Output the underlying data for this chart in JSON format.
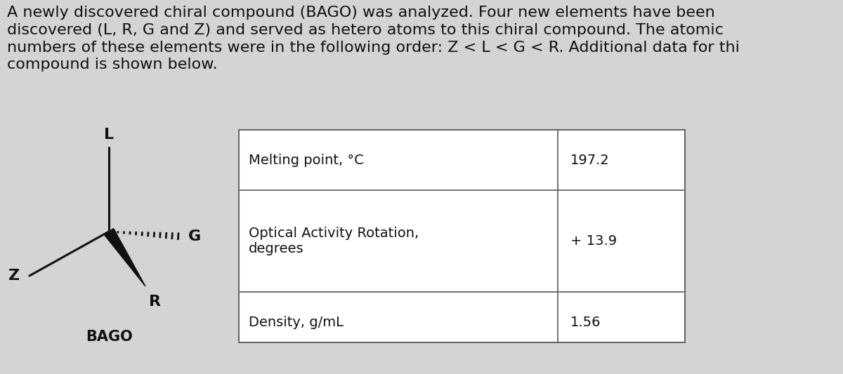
{
  "background_color": "#d4d4d4",
  "paragraph_text": "A newly discovered chiral compound (BAGO) was analyzed. Four new elements have been\ndiscovered (L, R, G and Z) and served as hetero atoms to this chiral compound. The atomic\nnumbers of these elements were in the following order: Z < L < G < R. Additional data for thi\ncompound is shown below.",
  "paragraph_fontsize": 16,
  "molecule_label": "BAGO",
  "molecule_label_fontsize": 15,
  "L_label": "L",
  "Z_label": "Z",
  "G_label": "G",
  "R_label": "R",
  "label_fontsize": 16,
  "table_rows": [
    [
      "Melting point, °C",
      "197.2"
    ],
    [
      "Optical Activity Rotation,\ndegrees",
      "+ 13.9"
    ],
    [
      "Density, g/mL",
      "1.56"
    ]
  ],
  "table_fontsize": 14,
  "text_color": "#111111",
  "bond_color": "#111111",
  "table_bg": "#ffffff",
  "table_border": "#666666"
}
